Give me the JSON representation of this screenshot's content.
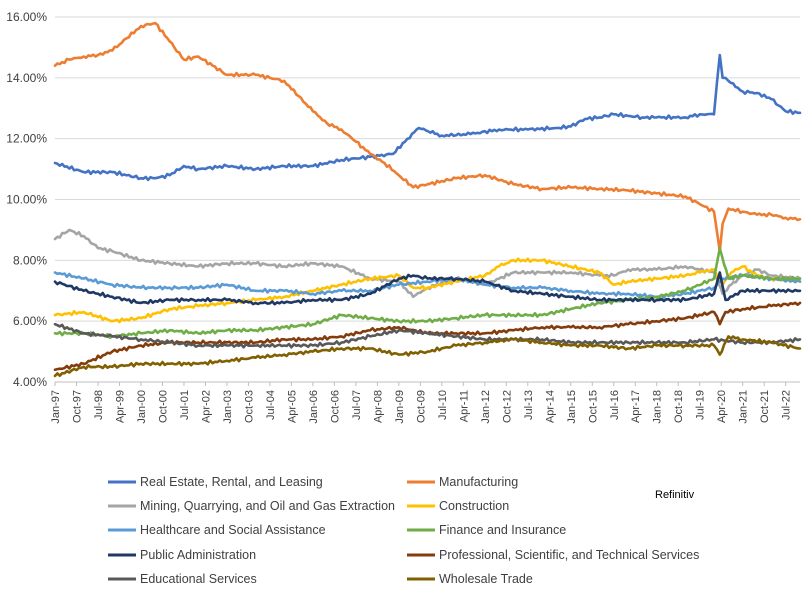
{
  "chart_data": {
    "type": "line",
    "title": "",
    "xlabel": "",
    "ylabel": "",
    "ylim": [
      4.0,
      16.0
    ],
    "ytick_values": [
      4,
      6,
      8,
      10,
      12,
      14,
      16
    ],
    "ytick_labels": [
      "4.00%",
      "6.00%",
      "8.00%",
      "10.00%",
      "12.00%",
      "14.00%",
      "16.00%"
    ],
    "xlim": [
      1997.0,
      2023.0
    ],
    "xtick_values": [
      1997.0,
      1997.75,
      1998.5,
      1999.25,
      2000.0,
      2000.75,
      2001.5,
      2002.25,
      2003.0,
      2003.75,
      2004.5,
      2005.25,
      2006.0,
      2006.75,
      2007.5,
      2008.25,
      2009.0,
      2009.75,
      2010.5,
      2011.25,
      2012.0,
      2012.75,
      2013.5,
      2014.25,
      2015.0,
      2015.75,
      2016.5,
      2017.25,
      2018.0,
      2018.75,
      2019.5,
      2020.25,
      2021.0,
      2021.75,
      2022.5
    ],
    "xtick_labels": [
      "Jan-97",
      "Oct-97",
      "Jul-98",
      "Apr-99",
      "Jan-00",
      "Oct-00",
      "Jul-01",
      "Apr-02",
      "Jan-03",
      "Oct-03",
      "Jul-04",
      "Apr-05",
      "Jan-06",
      "Oct-06",
      "Jul-07",
      "Apr-08",
      "Jan-09",
      "Oct-09",
      "Jul-10",
      "Apr-11",
      "Jan-12",
      "Oct-12",
      "Jul-13",
      "Apr-14",
      "Jan-15",
      "Oct-15",
      "Jul-16",
      "Apr-17",
      "Jan-18",
      "Oct-18",
      "Jul-19",
      "Apr-20",
      "Jan-21",
      "Oct-21",
      "Jul-22"
    ],
    "grid": true,
    "legend_position": "bottom",
    "annotation": "Refinitiv",
    "series": [
      {
        "name": "Real Estate, Rental, and Leasing",
        "color": "#4472C4",
        "x": [
          1997.0,
          1998.0,
          1999.0,
          2000.0,
          2000.5,
          2001.0,
          2001.5,
          2002.0,
          2003.0,
          2004.0,
          2005.0,
          2006.0,
          2007.0,
          2008.0,
          2008.8,
          2009.3,
          2009.7,
          2010.5,
          2011.5,
          2012.5,
          2013.5,
          2014.5,
          2015.0,
          2015.5,
          2016.0,
          2016.5,
          2017.0,
          2017.5,
          2018.0,
          2019.0,
          2019.5,
          2020.0,
          2020.2,
          2020.3,
          2020.5,
          2021.0,
          2021.5,
          2022.0,
          2022.5,
          2023.0
        ],
        "values": [
          11.2,
          10.9,
          10.9,
          10.7,
          10.7,
          10.8,
          11.1,
          11.0,
          11.1,
          11.0,
          11.1,
          11.1,
          11.3,
          11.4,
          11.5,
          12.0,
          12.35,
          12.1,
          12.15,
          12.3,
          12.3,
          12.35,
          12.4,
          12.65,
          12.7,
          12.8,
          12.75,
          12.7,
          12.7,
          12.7,
          12.8,
          12.8,
          14.75,
          14.0,
          13.9,
          13.55,
          13.5,
          13.3,
          12.9,
          12.85
        ]
      },
      {
        "name": "Manufacturing",
        "color": "#ED7D31",
        "x": [
          1997.0,
          1997.5,
          1998.0,
          1998.5,
          1999.0,
          1999.5,
          2000.0,
          2000.5,
          2001.0,
          2001.5,
          2002.0,
          2002.5,
          2003.0,
          2004.0,
          2005.0,
          2005.5,
          2006.0,
          2006.5,
          2007.0,
          2007.5,
          2008.0,
          2008.5,
          2009.0,
          2009.5,
          2010.0,
          2011.0,
          2012.0,
          2013.0,
          2014.0,
          2015.0,
          2016.0,
          2017.0,
          2018.0,
          2019.0,
          2019.5,
          2020.0,
          2020.2,
          2020.3,
          2020.5,
          2021.0,
          2021.5,
          2022.0,
          2022.5,
          2023.0
        ],
        "values": [
          14.4,
          14.6,
          14.7,
          14.75,
          14.9,
          15.3,
          15.7,
          15.8,
          15.2,
          14.6,
          14.7,
          14.4,
          14.1,
          14.1,
          13.9,
          13.4,
          12.9,
          12.5,
          12.3,
          11.9,
          11.5,
          11.2,
          10.8,
          10.4,
          10.5,
          10.7,
          10.8,
          10.5,
          10.35,
          10.4,
          10.35,
          10.3,
          10.2,
          10.1,
          9.85,
          9.6,
          8.3,
          9.2,
          9.7,
          9.6,
          9.5,
          9.5,
          9.4,
          9.35
        ]
      },
      {
        "name": "Mining, Quarrying, and Oil and Gas Extraction",
        "color": "#A5A5A5",
        "x": [
          1997.0,
          1997.5,
          1998.0,
          1998.5,
          1999.0,
          2000.0,
          2001.0,
          2002.0,
          2003.0,
          2004.0,
          2005.0,
          2006.0,
          2007.0,
          2008.0,
          2009.0,
          2009.5,
          2010.0,
          2011.0,
          2012.0,
          2013.0,
          2014.0,
          2015.0,
          2016.0,
          2016.5,
          2017.0,
          2018.0,
          2019.0,
          2019.5,
          2020.0,
          2020.3,
          2020.6,
          2021.0,
          2021.5,
          2022.0,
          2023.0
        ],
        "values": [
          8.7,
          9.0,
          8.8,
          8.4,
          8.3,
          8.0,
          7.9,
          7.8,
          7.9,
          7.9,
          7.8,
          7.9,
          7.8,
          7.4,
          7.3,
          6.8,
          7.1,
          7.4,
          7.2,
          7.6,
          7.6,
          7.6,
          7.5,
          7.5,
          7.7,
          7.7,
          7.8,
          7.7,
          7.6,
          6.9,
          7.2,
          7.5,
          7.7,
          7.5,
          7.4
        ]
      },
      {
        "name": "Construction",
        "color": "#FFC000",
        "x": [
          1997.0,
          1998.0,
          1999.0,
          2000.0,
          2001.0,
          2002.0,
          2003.0,
          2004.0,
          2005.0,
          2006.0,
          2007.0,
          2008.0,
          2009.0,
          2009.5,
          2010.0,
          2011.0,
          2012.0,
          2012.5,
          2013.0,
          2014.0,
          2015.0,
          2016.0,
          2016.5,
          2017.0,
          2018.0,
          2019.0,
          2019.5,
          2020.0,
          2020.3,
          2020.6,
          2021.0,
          2021.5,
          2022.0,
          2023.0
        ],
        "values": [
          6.2,
          6.3,
          6.0,
          6.1,
          6.4,
          6.5,
          6.6,
          6.7,
          6.8,
          7.0,
          7.2,
          7.4,
          7.5,
          7.1,
          7.1,
          7.3,
          7.5,
          7.8,
          8.0,
          8.0,
          7.8,
          7.6,
          7.2,
          7.3,
          7.4,
          7.5,
          7.6,
          7.7,
          7.2,
          7.6,
          7.8,
          7.5,
          7.4,
          7.3
        ]
      },
      {
        "name": "Healthcare and Social Assistance",
        "color": "#5B9BD5",
        "x": [
          1997.0,
          1998.0,
          1999.0,
          2000.0,
          2001.0,
          2002.0,
          2003.0,
          2004.0,
          2005.0,
          2006.0,
          2007.0,
          2008.0,
          2009.0,
          2010.0,
          2011.0,
          2012.0,
          2013.0,
          2014.0,
          2015.0,
          2016.0,
          2017.0,
          2018.0,
          2019.0,
          2020.0,
          2020.3,
          2021.0,
          2022.0,
          2023.0
        ],
        "values": [
          7.6,
          7.4,
          7.2,
          7.1,
          7.1,
          7.1,
          7.2,
          7.0,
          7.0,
          6.9,
          7.0,
          7.0,
          7.2,
          7.3,
          7.4,
          7.2,
          7.1,
          7.1,
          7.0,
          6.9,
          6.9,
          6.8,
          6.9,
          7.1,
          7.4,
          7.5,
          7.4,
          7.3
        ]
      },
      {
        "name": "Finance and Insurance",
        "color": "#70AD47",
        "x": [
          1997.0,
          1998.0,
          1999.0,
          2000.0,
          2001.0,
          2002.0,
          2003.0,
          2004.0,
          2005.0,
          2006.0,
          2007.0,
          2008.0,
          2009.0,
          2010.0,
          2011.0,
          2012.0,
          2013.0,
          2014.0,
          2015.0,
          2016.0,
          2017.0,
          2018.0,
          2019.0,
          2020.0,
          2020.2,
          2020.5,
          2021.0,
          2022.0,
          2023.0
        ],
        "values": [
          5.6,
          5.6,
          5.5,
          5.6,
          5.7,
          5.6,
          5.7,
          5.7,
          5.8,
          5.9,
          6.2,
          6.1,
          6.0,
          6.0,
          6.1,
          6.2,
          6.2,
          6.2,
          6.4,
          6.6,
          6.7,
          6.8,
          7.0,
          7.4,
          8.4,
          7.4,
          7.5,
          7.4,
          7.4
        ]
      },
      {
        "name": "Public Administration",
        "color": "#1F3864",
        "x": [
          1997.0,
          1998.0,
          1999.0,
          2000.0,
          2001.0,
          2002.0,
          2003.0,
          2004.0,
          2005.0,
          2006.0,
          2007.0,
          2008.0,
          2009.0,
          2009.5,
          2010.0,
          2011.0,
          2012.0,
          2013.0,
          2014.0,
          2015.0,
          2016.0,
          2017.0,
          2018.0,
          2019.0,
          2020.0,
          2020.2,
          2020.4,
          2021.0,
          2022.0,
          2023.0
        ],
        "values": [
          7.3,
          7.0,
          6.8,
          6.6,
          6.7,
          6.7,
          6.7,
          6.6,
          6.6,
          6.7,
          6.7,
          6.9,
          7.4,
          7.5,
          7.4,
          7.4,
          7.3,
          7.0,
          6.9,
          6.8,
          6.7,
          6.7,
          6.7,
          6.7,
          6.9,
          7.6,
          6.7,
          7.0,
          7.0,
          7.0
        ]
      },
      {
        "name": "Professional, Scientific, and Technical Services",
        "color": "#843C0C",
        "x": [
          1997.0,
          1998.0,
          1999.0,
          2000.0,
          2001.0,
          2002.0,
          2003.0,
          2004.0,
          2005.0,
          2006.0,
          2007.0,
          2008.0,
          2009.0,
          2010.0,
          2011.0,
          2012.0,
          2013.0,
          2014.0,
          2015.0,
          2016.0,
          2017.0,
          2018.0,
          2019.0,
          2020.0,
          2020.2,
          2020.4,
          2021.0,
          2022.0,
          2023.0
        ],
        "values": [
          4.4,
          4.6,
          5.0,
          5.2,
          5.3,
          5.3,
          5.3,
          5.3,
          5.4,
          5.4,
          5.5,
          5.7,
          5.8,
          5.6,
          5.6,
          5.6,
          5.7,
          5.8,
          5.8,
          5.8,
          5.9,
          6.0,
          6.1,
          6.3,
          5.9,
          6.3,
          6.4,
          6.5,
          6.6
        ]
      },
      {
        "name": "Educational Services",
        "color": "#595959",
        "x": [
          1997.0,
          1998.0,
          1999.0,
          2000.0,
          2001.0,
          2002.0,
          2003.0,
          2004.0,
          2005.0,
          2006.0,
          2007.0,
          2008.0,
          2009.0,
          2010.0,
          2011.0,
          2012.0,
          2013.0,
          2014.0,
          2015.0,
          2016.0,
          2017.0,
          2018.0,
          2019.0,
          2020.0,
          2021.0,
          2022.0,
          2023.0
        ],
        "values": [
          5.9,
          5.6,
          5.5,
          5.4,
          5.3,
          5.2,
          5.2,
          5.2,
          5.2,
          5.2,
          5.3,
          5.5,
          5.7,
          5.6,
          5.5,
          5.4,
          5.4,
          5.4,
          5.3,
          5.3,
          5.3,
          5.3,
          5.3,
          5.4,
          5.3,
          5.3,
          5.4
        ]
      },
      {
        "name": "Wholesale Trade",
        "color": "#806000",
        "x": [
          1997.0,
          1998.0,
          1999.0,
          2000.0,
          2001.0,
          2002.0,
          2003.0,
          2004.0,
          2005.0,
          2006.0,
          2007.0,
          2008.0,
          2009.0,
          2010.0,
          2011.0,
          2012.0,
          2013.0,
          2014.0,
          2015.0,
          2016.0,
          2017.0,
          2018.0,
          2019.0,
          2020.0,
          2020.2,
          2020.5,
          2021.0,
          2022.0,
          2023.0
        ],
        "values": [
          4.2,
          4.5,
          4.5,
          4.6,
          4.6,
          4.6,
          4.7,
          4.8,
          4.9,
          5.0,
          5.1,
          5.1,
          4.9,
          5.0,
          5.2,
          5.3,
          5.4,
          5.3,
          5.2,
          5.2,
          5.1,
          5.2,
          5.2,
          5.2,
          4.9,
          5.5,
          5.4,
          5.3,
          5.1
        ]
      }
    ]
  }
}
